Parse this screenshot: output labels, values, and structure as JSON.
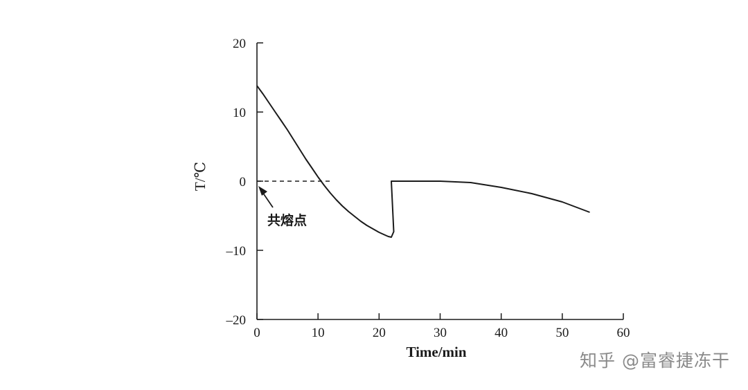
{
  "chart_data": {
    "type": "line",
    "xlabel": "Time/min",
    "ylabel": "T/℃",
    "xlim": [
      0,
      60
    ],
    "ylim": [
      -20,
      20
    ],
    "x_ticks": [
      0,
      10,
      20,
      30,
      40,
      50,
      60
    ],
    "y_ticks": [
      20,
      10,
      0,
      -10,
      -20
    ],
    "y_tick_labels": [
      "20",
      "10",
      "0",
      "–10",
      "–20"
    ],
    "grid": false,
    "series": [
      {
        "x": [
          0,
          1,
          2,
          3,
          4,
          5,
          6,
          7,
          8,
          9,
          10,
          11,
          12,
          13,
          14,
          15,
          16,
          17,
          18,
          19,
          20,
          21,
          21.5,
          22,
          22.4,
          22,
          25,
          30,
          35,
          40,
          45,
          50,
          54.5
        ],
        "y": [
          13.8,
          12.6,
          11.3,
          10.0,
          8.7,
          7.4,
          6.0,
          4.6,
          3.2,
          1.9,
          0.6,
          -0.6,
          -1.7,
          -2.7,
          -3.6,
          -4.4,
          -5.1,
          -5.8,
          -6.4,
          -6.9,
          -7.4,
          -7.8,
          -8.0,
          -8.1,
          -7.3,
          0,
          0,
          0,
          -0.2,
          -0.9,
          -1.8,
          -3.0,
          -4.5
        ]
      },
      {
        "x": [
          0,
          12
        ],
        "y": [
          0,
          0
        ],
        "style": "dashed"
      }
    ],
    "annotations": [
      {
        "text": "共熔点",
        "x": 0,
        "y": 0
      }
    ]
  },
  "watermark": "知乎 @富睿捷冻干"
}
